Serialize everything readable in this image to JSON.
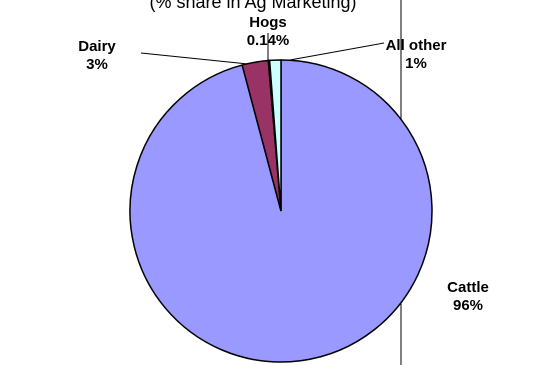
{
  "chart_data": {
    "type": "pie",
    "title": "(% share in Ag Marketing)",
    "slices": [
      {
        "name": "Cattle",
        "value_label": "96%",
        "value": 95.86,
        "color": "#9999ff"
      },
      {
        "name": "Dairy",
        "value_label": "3%",
        "value": 2.8,
        "color": "#993366"
      },
      {
        "name": "Hogs",
        "value_label": "0.14%",
        "value": 0.14,
        "color": "#ffffff"
      },
      {
        "name": "All other",
        "value_label": "1%",
        "value": 1.2,
        "color": "#ccffff"
      }
    ],
    "legend": "none"
  }
}
